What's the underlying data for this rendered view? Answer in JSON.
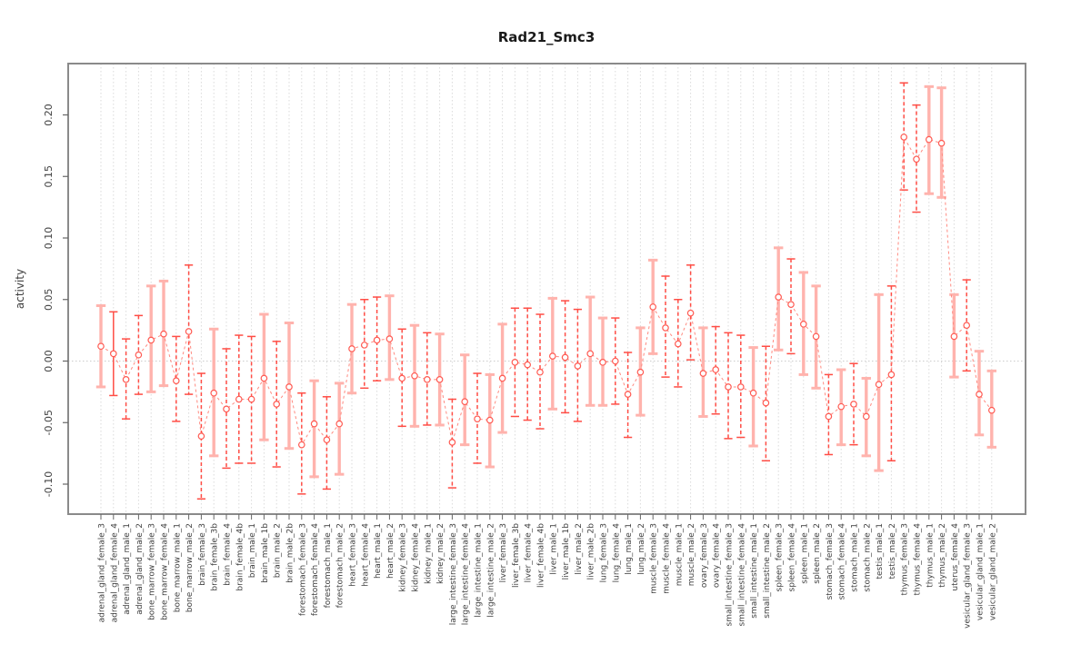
{
  "chart_data": {
    "type": "scatter",
    "subtype": "points-with-error-bars",
    "title": "Rad21_Smc3",
    "xlabel": "",
    "ylabel": "activity",
    "ylim": [
      -0.124,
      0.242
    ],
    "ytick_labels": [
      "-0.10",
      "-0.05",
      "0.00",
      "0.05",
      "0.10",
      "0.15",
      "0.20"
    ],
    "ytick_values": [
      -0.1,
      -0.05,
      0.0,
      0.05,
      0.1,
      0.15,
      0.2
    ],
    "grid": "vertical dotted line at every category; dotted horizontal line at y=0",
    "legend": "none",
    "categories": [
      "adrenal_gland_female_3",
      "adrenal_gland_female_4",
      "adrenal_gland_male_1",
      "adrenal_gland_male_2",
      "bone_marrow_female_3",
      "bone_marrow_female_4",
      "bone_marrow_male_1",
      "bone_marrow_male_2",
      "brain_female_3",
      "brain_female_3b",
      "brain_female_4",
      "brain_female_4b",
      "brain_male_1",
      "brain_male_1b",
      "brain_male_2",
      "brain_male_2b",
      "forestomach_female_3",
      "forestomach_female_4",
      "forestomach_male_1",
      "forestomach_male_2",
      "heart_female_3",
      "heart_female_4",
      "heart_male_1",
      "heart_male_2",
      "kidney_female_3",
      "kidney_female_4",
      "kidney_male_1",
      "kidney_male_2",
      "large_intestine_female_3",
      "large_intestine_female_4",
      "large_intestine_male_1",
      "large_intestine_male_2",
      "liver_female_3",
      "liver_female_3b",
      "liver_female_4",
      "liver_female_4b",
      "liver_male_1",
      "liver_male_1b",
      "liver_male_2",
      "liver_male_2b",
      "lung_female_3",
      "lung_female_4",
      "lung_male_1",
      "lung_male_2",
      "muscle_female_3",
      "muscle_female_4",
      "muscle_male_1",
      "muscle_male_2",
      "ovary_female_3",
      "ovary_female_4",
      "small_intestine_female_3",
      "small_intestine_female_4",
      "small_intestine_male_1",
      "small_intestine_male_2",
      "spleen_female_3",
      "spleen_female_4",
      "spleen_male_1",
      "spleen_male_2",
      "stomach_female_3",
      "stomach_female_4",
      "stomach_male_1",
      "stomach_male_2",
      "testis_male_1",
      "testis_male_2",
      "thymus_female_3",
      "thymus_female_4",
      "thymus_male_1",
      "thymus_male_2",
      "uterus_female_4",
      "vesicular_gland_female_3",
      "vesicular_gland_male_1",
      "vesicular_gland_male_2"
    ],
    "values": [
      0.012,
      0.006,
      -0.015,
      0.005,
      0.017,
      0.022,
      -0.016,
      0.024,
      -0.061,
      -0.026,
      -0.039,
      -0.031,
      -0.031,
      -0.014,
      -0.035,
      -0.021,
      -0.068,
      -0.051,
      -0.064,
      -0.051,
      0.01,
      0.013,
      0.017,
      0.018,
      -0.014,
      -0.012,
      -0.015,
      -0.015,
      -0.066,
      -0.033,
      -0.047,
      -0.048,
      -0.014,
      -0.001,
      -0.003,
      -0.009,
      0.004,
      0.003,
      -0.004,
      0.006,
      -0.001,
      0.0,
      -0.027,
      -0.009,
      0.044,
      0.027,
      0.014,
      0.039,
      -0.01,
      -0.007,
      -0.021,
      -0.021,
      -0.026,
      -0.034,
      0.052,
      0.046,
      0.03,
      0.02,
      -0.045,
      -0.037,
      -0.035,
      -0.045,
      -0.019,
      -0.011,
      0.182,
      0.164,
      0.18,
      0.177,
      0.02,
      0.029,
      -0.027,
      -0.04
    ],
    "lower": [
      -0.021,
      -0.028,
      -0.047,
      -0.027,
      -0.025,
      -0.02,
      -0.049,
      -0.027,
      -0.112,
      -0.077,
      -0.087,
      -0.083,
      -0.083,
      -0.064,
      -0.086,
      -0.071,
      -0.108,
      -0.094,
      -0.104,
      -0.092,
      -0.026,
      -0.022,
      -0.016,
      -0.015,
      -0.053,
      -0.053,
      -0.052,
      -0.052,
      -0.103,
      -0.068,
      -0.083,
      -0.086,
      -0.058,
      -0.045,
      -0.048,
      -0.055,
      -0.039,
      -0.042,
      -0.049,
      -0.036,
      -0.036,
      -0.035,
      -0.062,
      -0.044,
      0.006,
      -0.013,
      -0.021,
      0.001,
      -0.045,
      -0.043,
      -0.063,
      -0.062,
      -0.069,
      -0.081,
      0.009,
      0.006,
      -0.011,
      -0.022,
      -0.076,
      -0.068,
      -0.068,
      -0.077,
      -0.089,
      -0.081,
      0.139,
      0.121,
      0.136,
      0.133,
      -0.013,
      -0.008,
      -0.06,
      -0.07
    ],
    "upper": [
      0.045,
      0.04,
      0.018,
      0.037,
      0.061,
      0.065,
      0.02,
      0.078,
      -0.01,
      0.026,
      0.01,
      0.021,
      0.02,
      0.038,
      0.016,
      0.031,
      -0.026,
      -0.016,
      -0.029,
      -0.018,
      0.046,
      0.05,
      0.052,
      0.053,
      0.026,
      0.029,
      0.023,
      0.022,
      -0.031,
      0.005,
      -0.01,
      -0.011,
      0.03,
      0.043,
      0.043,
      0.038,
      0.051,
      0.049,
      0.042,
      0.052,
      0.035,
      0.035,
      0.007,
      0.027,
      0.082,
      0.069,
      0.05,
      0.078,
      0.027,
      0.028,
      0.023,
      0.021,
      0.011,
      0.012,
      0.092,
      0.083,
      0.072,
      0.061,
      -0.011,
      -0.007,
      -0.002,
      -0.014,
      0.054,
      0.061,
      0.226,
      0.208,
      0.223,
      0.222,
      0.054,
      0.066,
      0.008,
      -0.008
    ],
    "bar_styles": [
      "pink",
      "solid",
      "dash",
      "dash",
      "pink",
      "pink",
      "dash",
      "dash",
      "dash",
      "pink",
      "dash",
      "dash",
      "dash",
      "pink",
      "dash",
      "pink",
      "dash",
      "pink",
      "dash",
      "pink",
      "pink",
      "dash",
      "dash",
      "pink",
      "dash",
      "pink",
      "dash",
      "pink",
      "dash",
      "pink",
      "dash",
      "pink",
      "pink",
      "dash",
      "dash",
      "dash",
      "pink",
      "dash",
      "dash",
      "pink",
      "pink",
      "dash",
      "dash",
      "pink",
      "pink",
      "dash",
      "dash",
      "dash",
      "pink",
      "dash",
      "dash",
      "dash",
      "pink",
      "dash",
      "pink",
      "dash",
      "pink",
      "pink",
      "dash",
      "pink",
      "dash",
      "pink",
      "pink",
      "dash",
      "dash",
      "dash",
      "pink",
      "pink",
      "pink",
      "dash",
      "pink",
      "pink"
    ],
    "colors": {
      "point": "#ff5a52",
      "bar_pink": "#ffb3ad",
      "bar_red": "#ff4d45",
      "connector": "#ff8a80",
      "grid": "#dadada",
      "zero_line": "#cccccc",
      "box": "#8a8a8a",
      "title_text": "#1a1a1a",
      "tick_text": "#404040"
    }
  }
}
